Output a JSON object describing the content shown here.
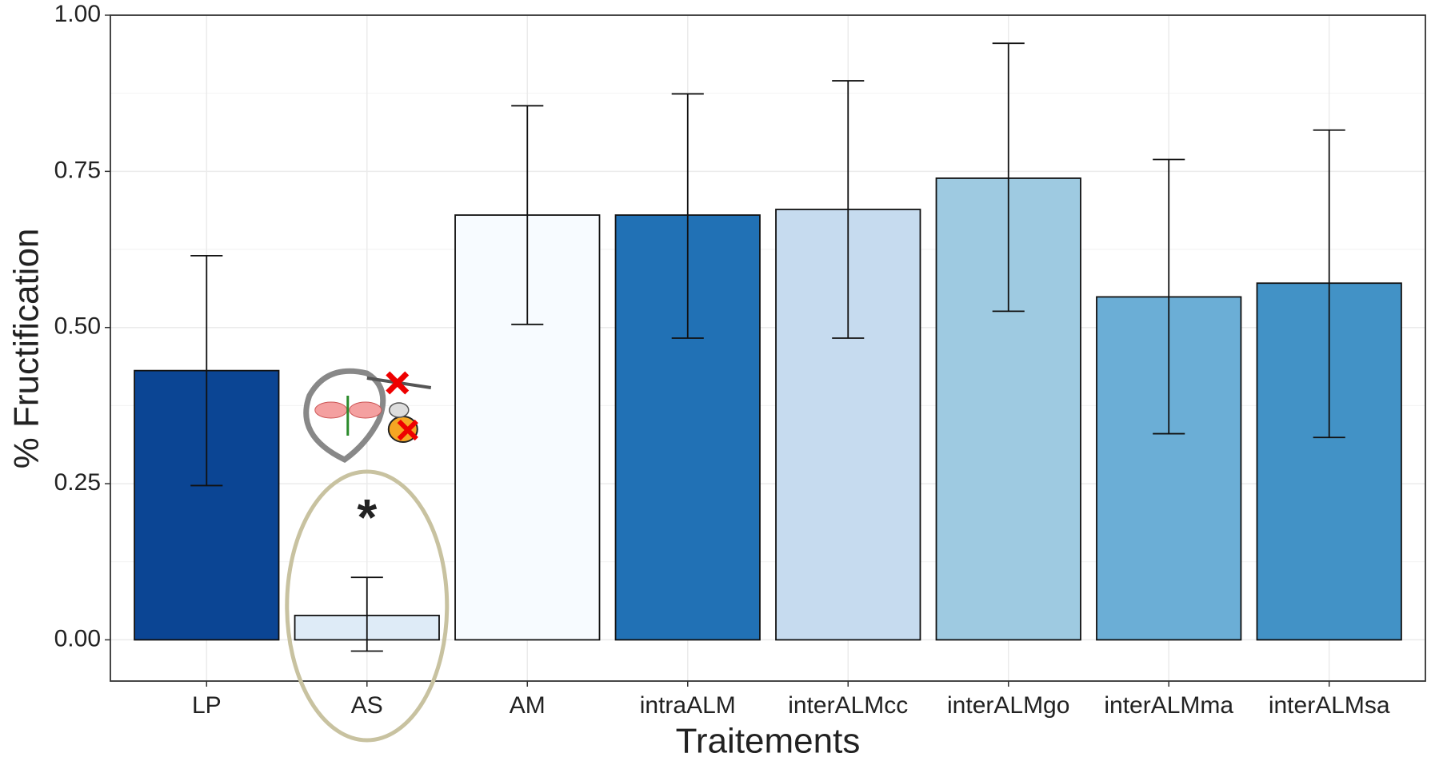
{
  "chart_data": {
    "type": "bar",
    "x_label": "Traitements",
    "y_label": "% Fructification",
    "categories": [
      "LP",
      "AS",
      "AM",
      "intraALM",
      "interALMcc",
      "interALMgo",
      "interALMma",
      "interALMsa"
    ],
    "values": [
      0.431,
      0.039,
      0.68,
      0.68,
      0.689,
      0.739,
      0.549,
      0.571
    ],
    "ci_low": [
      0.247,
      -0.018,
      0.505,
      0.483,
      0.483,
      0.526,
      0.33,
      0.324
    ],
    "ci_high": [
      0.615,
      0.1,
      0.855,
      0.874,
      0.895,
      0.955,
      0.769,
      0.816
    ],
    "colors": [
      "#0b4594",
      "#deebf7",
      "#f7fbff",
      "#2171b5",
      "#c6dbef",
      "#9ecae1",
      "#6baed6",
      "#4292c6"
    ],
    "ylim": [
      -0.066,
      1.0
    ],
    "yticks": [
      {
        "value": 0,
        "label": "0.00"
      },
      {
        "value": 0.25,
        "label": "0.25"
      },
      {
        "value": 0.5,
        "label": "0.50"
      },
      {
        "value": 0.75,
        "label": "0.75"
      },
      {
        "value": 1,
        "label": "1.00"
      }
    ],
    "minor_yticks": [
      0.125,
      0.375,
      0.625,
      0.875
    ],
    "grid": true,
    "annotations": [
      {
        "text": "*",
        "category": 1
      }
    ]
  }
}
